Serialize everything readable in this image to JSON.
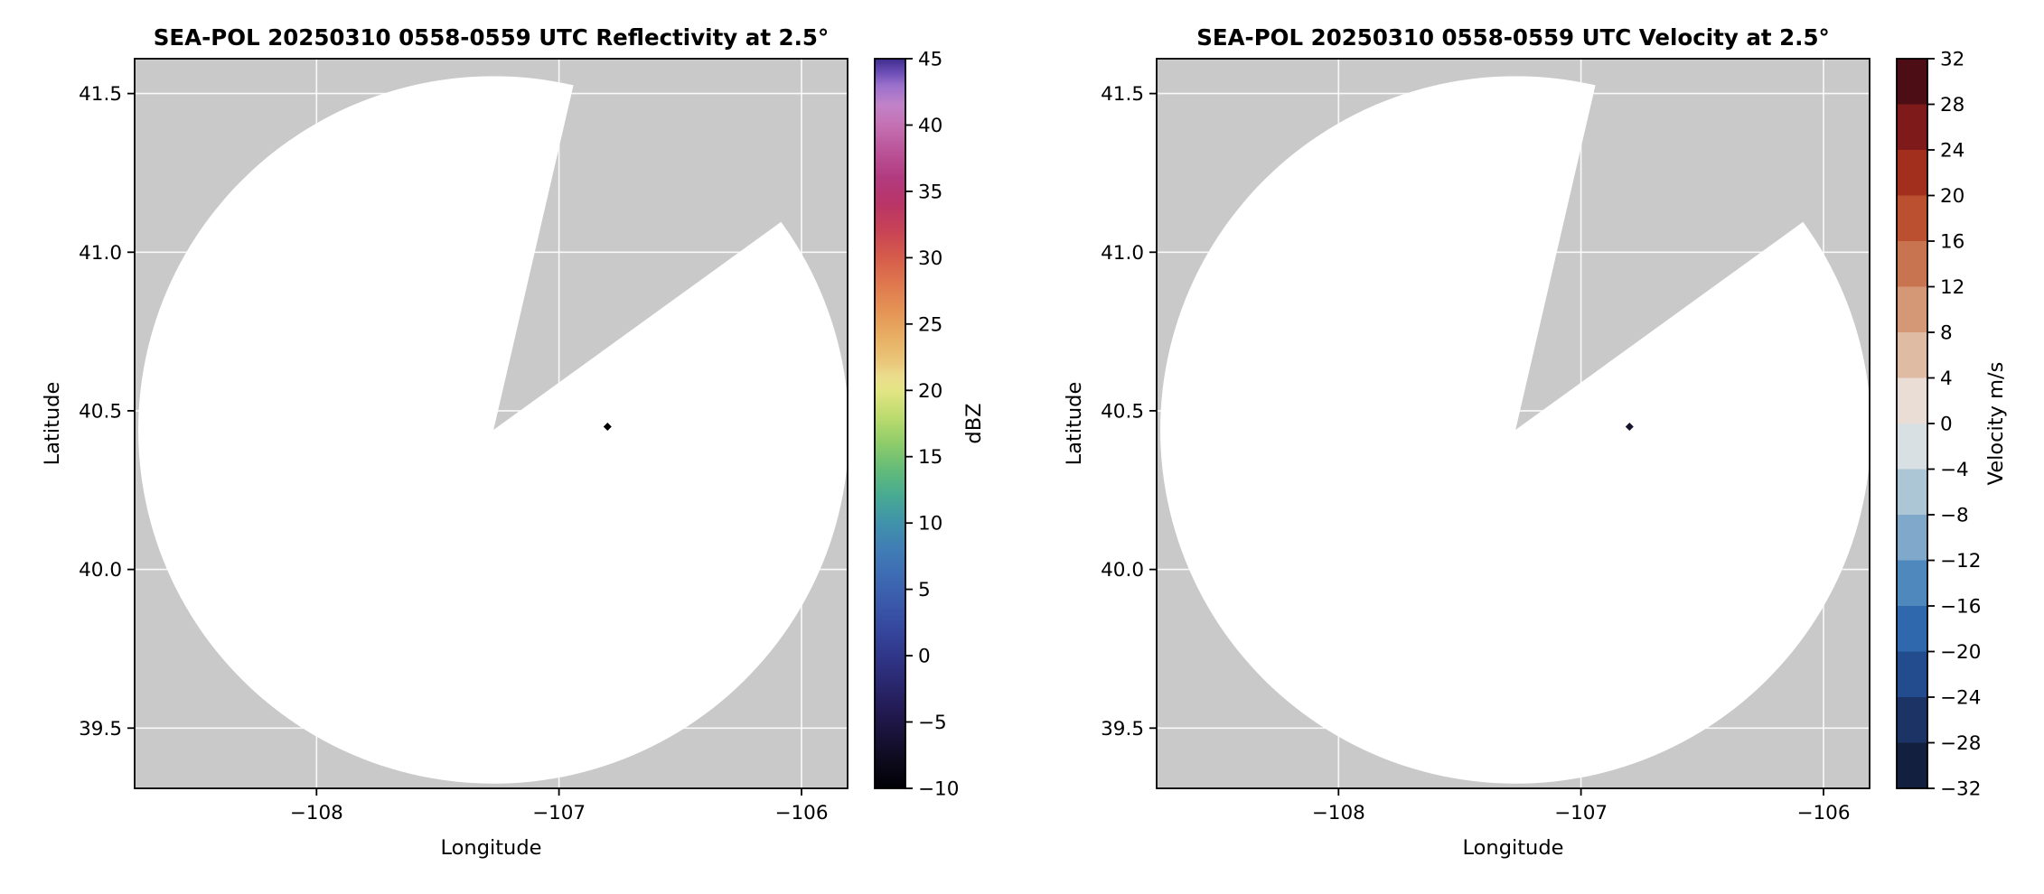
{
  "figure": {
    "background": "#ffffff"
  },
  "chart_data": [
    {
      "type": "heatmap",
      "plot_kind": "radar-ppi",
      "title": "SEA-POL 20250310 0558-0559 UTC Reflectivity at 2.5°",
      "xlabel": "Longitude",
      "ylabel": "Latitude",
      "xlim": [
        -108.75,
        -105.81
      ],
      "ylim": [
        39.31,
        41.61
      ],
      "xticks": [
        -108,
        -107,
        -106
      ],
      "xtick_labels": [
        "−108",
        "−107",
        "−106"
      ],
      "yticks": [
        39.5,
        40.0,
        40.5,
        41.0,
        41.5
      ],
      "ytick_labels": [
        "39.5",
        "40.0",
        "40.5",
        "41.0",
        "41.5"
      ],
      "grid": true,
      "grid_color": "#ffffff",
      "background_color": "#c9c9c9",
      "scan": {
        "center_lon": -107.27,
        "center_lat": 40.44,
        "radius_lat_deg": 1.115,
        "missing_sector_azimuth_deg": [
          13,
          54
        ],
        "data_fill": "#ffffff"
      },
      "echo_points": [
        {
          "lon": -106.8,
          "lat": 40.45,
          "color": "#000000"
        }
      ],
      "colorbar": {
        "label": "dBZ",
        "vmin": -10,
        "vmax": 45,
        "style": "continuous",
        "ticks": [
          -10,
          -5,
          0,
          5,
          10,
          15,
          20,
          25,
          30,
          35,
          40,
          45
        ],
        "tick_labels": [
          "−10",
          "−5",
          "0",
          "5",
          "10",
          "15",
          "20",
          "25",
          "30",
          "35",
          "40",
          "45"
        ],
        "stops": [
          {
            "v": -10,
            "c": "#000006"
          },
          {
            "v": -8,
            "c": "#0d0a1c"
          },
          {
            "v": -6,
            "c": "#191238"
          },
          {
            "v": -4,
            "c": "#231b55"
          },
          {
            "v": -2,
            "c": "#2a2870"
          },
          {
            "v": 0,
            "c": "#303689"
          },
          {
            "v": 2,
            "c": "#35479d"
          },
          {
            "v": 4,
            "c": "#3a59aa"
          },
          {
            "v": 6,
            "c": "#3e6bb3"
          },
          {
            "v": 8,
            "c": "#407db5"
          },
          {
            "v": 10,
            "c": "#4092ab"
          },
          {
            "v": 12,
            "c": "#47aa93"
          },
          {
            "v": 14,
            "c": "#63bb79"
          },
          {
            "v": 16,
            "c": "#8ecc69"
          },
          {
            "v": 18,
            "c": "#bcdb6e"
          },
          {
            "v": 20,
            "c": "#e3e584"
          },
          {
            "v": 21,
            "c": "#ebdd8d"
          },
          {
            "v": 22,
            "c": "#eac97c"
          },
          {
            "v": 24,
            "c": "#e8af63"
          },
          {
            "v": 26,
            "c": "#e59355"
          },
          {
            "v": 28,
            "c": "#df784e"
          },
          {
            "v": 30,
            "c": "#d65c4b"
          },
          {
            "v": 32,
            "c": "#c84355"
          },
          {
            "v": 34,
            "c": "#b93566"
          },
          {
            "v": 36,
            "c": "#b23a7f"
          },
          {
            "v": 38,
            "c": "#bb5398"
          },
          {
            "v": 40,
            "c": "#c471b3"
          },
          {
            "v": 41.5,
            "c": "#c183c8"
          },
          {
            "v": 43,
            "c": "#9a70cc"
          },
          {
            "v": 44,
            "c": "#6a4cb4"
          },
          {
            "v": 45,
            "c": "#3f2d8e"
          }
        ]
      }
    },
    {
      "type": "heatmap",
      "plot_kind": "radar-ppi",
      "title": "SEA-POL 20250310 0558-0559 UTC Velocity at 2.5°",
      "xlabel": "Longitude",
      "ylabel": "Latitude",
      "xlim": [
        -108.75,
        -105.81
      ],
      "ylim": [
        39.31,
        41.61
      ],
      "xticks": [
        -108,
        -107,
        -106
      ],
      "xtick_labels": [
        "−108",
        "−107",
        "−106"
      ],
      "yticks": [
        39.5,
        40.0,
        40.5,
        41.0,
        41.5
      ],
      "ytick_labels": [
        "39.5",
        "40.0",
        "40.5",
        "41.0",
        "41.5"
      ],
      "grid": true,
      "grid_color": "#ffffff",
      "background_color": "#c9c9c9",
      "scan": {
        "center_lon": -107.27,
        "center_lat": 40.44,
        "radius_lat_deg": 1.115,
        "missing_sector_azimuth_deg": [
          13,
          54
        ],
        "data_fill": "#ffffff"
      },
      "echo_points": [
        {
          "lon": -106.8,
          "lat": 40.45,
          "color": "#14142a"
        }
      ],
      "colorbar": {
        "label": "Velocity m/s",
        "vmin": -32,
        "vmax": 32,
        "style": "discrete",
        "ticks": [
          -32,
          -28,
          -24,
          -20,
          -16,
          -12,
          -8,
          -4,
          0,
          4,
          8,
          12,
          16,
          20,
          24,
          28,
          32
        ],
        "tick_labels": [
          "−32",
          "−28",
          "−24",
          "−20",
          "−16",
          "−12",
          "−8",
          "−4",
          "0",
          "4",
          "8",
          "12",
          "16",
          "20",
          "24",
          "28",
          "32"
        ],
        "bins": [
          {
            "range": [
              -32,
              -28
            ],
            "color": "#131f3f"
          },
          {
            "range": [
              -28,
              -24
            ],
            "color": "#1c3366"
          },
          {
            "range": [
              -24,
              -20
            ],
            "color": "#234c8e"
          },
          {
            "range": [
              -20,
              -16
            ],
            "color": "#2f68ac"
          },
          {
            "range": [
              -16,
              -12
            ],
            "color": "#4f88bd"
          },
          {
            "range": [
              -12,
              -8
            ],
            "color": "#7fa8cb"
          },
          {
            "range": [
              -8,
              -4
            ],
            "color": "#adc6d5"
          },
          {
            "range": [
              -4,
              0
            ],
            "color": "#d9e0e4"
          },
          {
            "range": [
              0,
              4
            ],
            "color": "#e9ddd5"
          },
          {
            "range": [
              4,
              8
            ],
            "color": "#e0bba4"
          },
          {
            "range": [
              8,
              12
            ],
            "color": "#d59877"
          },
          {
            "range": [
              12,
              16
            ],
            "color": "#c97450"
          },
          {
            "range": [
              16,
              20
            ],
            "color": "#bb5030"
          },
          {
            "range": [
              20,
              24
            ],
            "color": "#a22f1e"
          },
          {
            "range": [
              24,
              28
            ],
            "color": "#7e1a1a"
          },
          {
            "range": [
              28,
              32
            ],
            "color": "#4c0e14"
          }
        ]
      }
    }
  ]
}
